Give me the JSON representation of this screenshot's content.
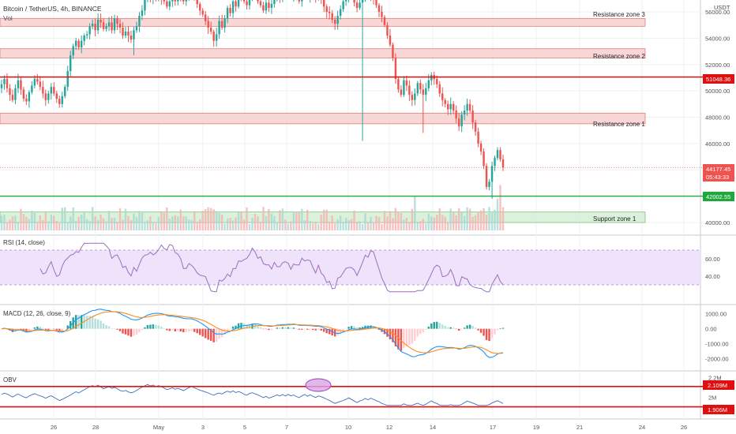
{
  "header": {
    "symbol_title": "Bitcoin / TetherUS, 4h, BINANCE",
    "volume_label": "Vol",
    "currency": "USDT"
  },
  "colors": {
    "up": "#26a69a",
    "down": "#ef5350",
    "resistance_fill": "#f8d0d0",
    "support_fill": "#d6efd6",
    "rsi_band": "#efe2fb",
    "rsi_line": "#9c6fbf",
    "macd_line": "#2196f3",
    "signal_line": "#ff8c1a",
    "obv_line": "#3f6fb8",
    "level_red": "#e01010",
    "level_green": "#1ea83c",
    "grid": "#eef0f3"
  },
  "zones": [
    {
      "label": "Resistance zone 3",
      "low": 54900,
      "high": 55500,
      "kind": "resistance"
    },
    {
      "label": "Resistance zone 2",
      "low": 52500,
      "high": 53200,
      "kind": "resistance"
    },
    {
      "label": "Resistance zone 1",
      "low": 47500,
      "high": 48300,
      "kind": "resistance"
    },
    {
      "label": "Support zone 1",
      "low": 40000,
      "high": 40800,
      "kind": "support"
    }
  ],
  "badges": {
    "resistance_level": "51048.36",
    "current_price": "44177.45",
    "countdown": "05:43:33",
    "support_level": "42002.55",
    "obv_upper": "2.109M",
    "obv_lower": "1.906M"
  },
  "indicators": {
    "rsi_label": "RSI (14, close)",
    "macd_label": "MACD (12, 26, close, 9)",
    "obv_label": "OBV"
  },
  "axis": {
    "price_ticks": [
      "56000.00",
      "54000.00",
      "52000.00",
      "50000.00",
      "48000.00",
      "46000.00",
      "40000.00"
    ],
    "rsi_ticks": [
      "60.00",
      "40.00"
    ],
    "macd_ticks": [
      "1000.00",
      "0.00",
      "-1000.00",
      "-2000.00"
    ],
    "obv_ticks": [
      "2.2M",
      "2M"
    ],
    "date_ticks": [
      "26",
      "28",
      "May",
      "3",
      "5",
      "7",
      "10",
      "12",
      "14",
      "17",
      "19",
      "21",
      "24",
      "26"
    ]
  },
  "chart_data": {
    "type": "candlestick",
    "timeframe": "4h",
    "ylim": [
      39000,
      57500
    ],
    "resistance_line": 51048.36,
    "support_line": 42002.55,
    "last_close": 44177.45,
    "closes": [
      50500,
      50900,
      50200,
      49700,
      49300,
      50200,
      50800,
      50100,
      49400,
      49200,
      49900,
      50400,
      50900,
      50700,
      50300,
      49800,
      49300,
      49800,
      50300,
      49800,
      49400,
      49000,
      49600,
      50300,
      51500,
      52700,
      53400,
      53800,
      53300,
      53800,
      54200,
      54300,
      54900,
      55100,
      54600,
      55400,
      55200,
      54700,
      54900,
      55200,
      54600,
      55500,
      55100,
      54800,
      54200,
      54500,
      54200,
      53900,
      54600,
      54900,
      55700,
      56100,
      56900,
      57300,
      57000,
      57300,
      57100,
      57200,
      57000,
      56800,
      56400,
      56800,
      57300,
      56800,
      57300,
      57100,
      56800,
      57200,
      57400,
      57500,
      57000,
      56600,
      56100,
      55800,
      55300,
      54800,
      54500,
      53800,
      54300,
      55300,
      54800,
      55500,
      56300,
      55900,
      56800,
      56400,
      57400,
      57000,
      56800,
      56500,
      57000,
      57400,
      57100,
      56800,
      56500,
      56100,
      56700,
      56300,
      56600,
      57100,
      57500,
      57100,
      57400,
      57200,
      57500,
      57200,
      57500,
      57100,
      56800,
      57200,
      57400,
      57100,
      57300,
      57100,
      57000,
      57300,
      56900,
      56400,
      56000,
      55900,
      55400,
      55100,
      55700,
      56200,
      56800,
      57000,
      57300,
      57100,
      56700,
      56300,
      56700,
      57000,
      57500,
      57200,
      57400,
      57000,
      56500,
      56000,
      55600,
      55000,
      54200,
      53500,
      52500,
      50900,
      50100,
      49700,
      50800,
      50400,
      49700,
      49300,
      49800,
      50600,
      50100,
      49700,
      50200,
      50800,
      51200,
      50900,
      50500,
      49800,
      49300,
      49000,
      48600,
      49000,
      48500,
      47900,
      47300,
      48200,
      48500,
      49000,
      48500,
      47600,
      46900,
      46000,
      45400,
      44300,
      42700,
      43100,
      44300,
      44900,
      45500,
      44800,
      44177.45
    ],
    "lows": {
      "index_48": 52700,
      "index_131": 46200,
      "index_153": 46800,
      "index_178": 41800
    },
    "volume_spikes": [
      {
        "index": 150,
        "rel": 0.55
      },
      {
        "index": 181,
        "rel": 0.72
      },
      {
        "index": 180,
        "rel": 0.5
      }
    ],
    "series": [
      {
        "name": "RSI (14, close)",
        "ylim": [
          20,
          80
        ],
        "band": [
          30,
          70
        ]
      },
      {
        "name": "MACD (12, 26, close, 9)",
        "ylim": [
          -2600,
          1300
        ]
      },
      {
        "name": "OBV",
        "ylim": [
          1.8,
          2.25
        ],
        "levels": [
          2.109,
          1.906
        ]
      }
    ]
  }
}
